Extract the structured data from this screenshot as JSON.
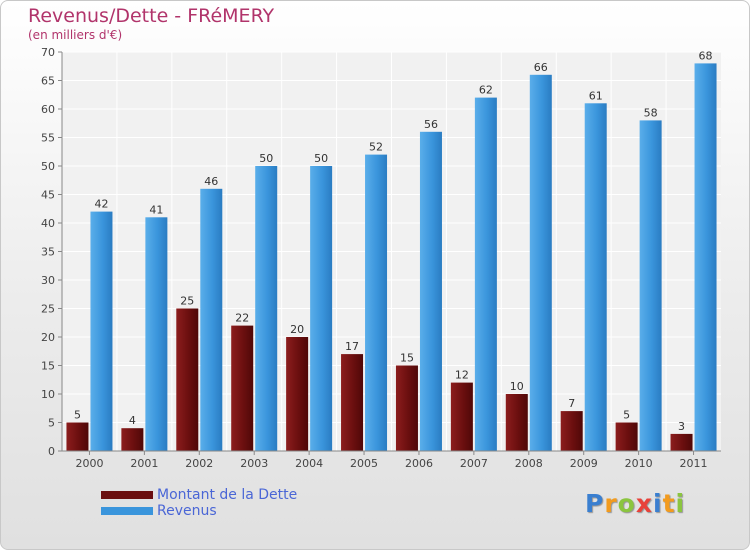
{
  "title": "Revenus/Dette - FRéMERY",
  "subtitle": "(en milliers d'€)",
  "chart_data": {
    "type": "bar",
    "title": "Revenus/Dette - FRéMERY",
    "subtitle": "(en milliers d'€)",
    "xlabel": "",
    "ylabel": "",
    "categories": [
      "2000",
      "2001",
      "2002",
      "2003",
      "2004",
      "2005",
      "2006",
      "2007",
      "2008",
      "2009",
      "2010",
      "2011"
    ],
    "series": [
      {
        "name": "Montant de la Dette",
        "color": "#6b0f0f",
        "values": [
          5,
          4,
          25,
          22,
          20,
          17,
          15,
          12,
          10,
          7,
          5,
          3
        ]
      },
      {
        "name": "Revenus",
        "color": "#3a95dc",
        "values": [
          42,
          41,
          46,
          50,
          50,
          52,
          56,
          62,
          66,
          61,
          58,
          68
        ]
      }
    ],
    "ylim": [
      0,
      70
    ],
    "yticks": [
      0,
      5,
      10,
      15,
      20,
      25,
      30,
      35,
      40,
      45,
      50,
      55,
      60,
      65,
      70
    ],
    "grid": true,
    "legend": "bottom-left",
    "data_labels": true
  },
  "logo": {
    "text": "Proxiti",
    "letters": [
      {
        "ch": "P",
        "color": "#3a7fd0"
      },
      {
        "ch": "r",
        "color": "#f29b1e"
      },
      {
        "ch": "o",
        "color": "#8bc53f"
      },
      {
        "ch": "x",
        "color": "#e8423a"
      },
      {
        "ch": "i",
        "color": "#3a7fd0"
      },
      {
        "ch": "t",
        "color": "#f29b1e"
      },
      {
        "ch": "i",
        "color": "#8bc53f"
      }
    ]
  }
}
